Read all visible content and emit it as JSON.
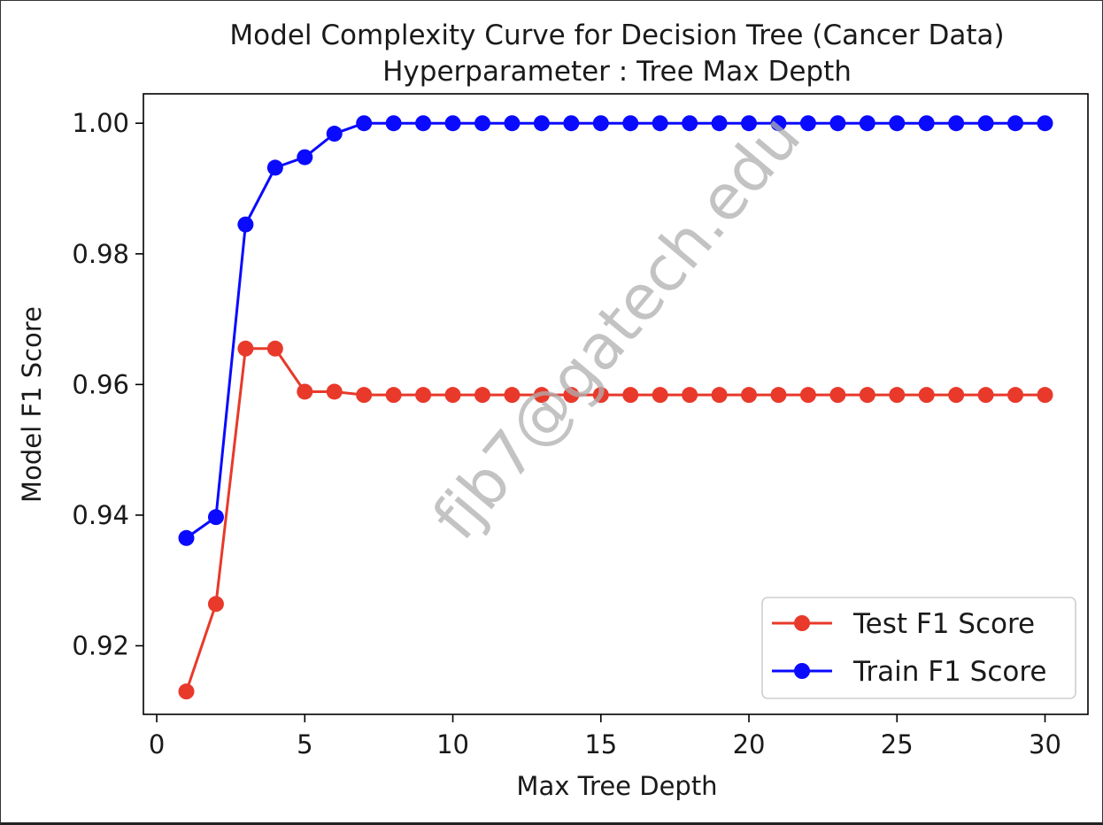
{
  "chart_data": {
    "type": "line",
    "title": "Model Complexity Curve for Decision Tree (Cancer Data)",
    "subtitle": "Hyperparameter : Tree Max Depth",
    "xlabel": "Max Tree Depth",
    "ylabel": "Model F1 Score",
    "xlim": [
      -0.45,
      31.45
    ],
    "ylim": [
      0.9095,
      1.0045
    ],
    "xticks": [
      0,
      5,
      10,
      15,
      20,
      25,
      30
    ],
    "xtick_labels": [
      "0",
      "5",
      "10",
      "15",
      "20",
      "25",
      "30"
    ],
    "yticks": [
      0.92,
      0.94,
      0.96,
      0.98,
      1.0
    ],
    "ytick_labels": [
      "0.92",
      "0.94",
      "0.96",
      "0.98",
      "1.00"
    ],
    "grid": false,
    "legend_position": "bottom-right",
    "x": [
      1,
      2,
      3,
      4,
      5,
      6,
      7,
      8,
      9,
      10,
      11,
      12,
      13,
      14,
      15,
      16,
      17,
      18,
      19,
      20,
      21,
      22,
      23,
      24,
      25,
      26,
      27,
      28,
      29,
      30
    ],
    "series": [
      {
        "name": "Test F1 Score",
        "color": "#e8392a",
        "marker": "circle",
        "values": [
          0.913,
          0.9264,
          0.9655,
          0.9655,
          0.9589,
          0.9589,
          0.9584,
          0.9584,
          0.9584,
          0.9584,
          0.9584,
          0.9584,
          0.9584,
          0.9584,
          0.9584,
          0.9584,
          0.9584,
          0.9584,
          0.9584,
          0.9584,
          0.9584,
          0.9584,
          0.9584,
          0.9584,
          0.9584,
          0.9584,
          0.9584,
          0.9584,
          0.9584,
          0.9584
        ]
      },
      {
        "name": "Train F1 Score",
        "color": "#0a0aff",
        "marker": "circle",
        "values": [
          0.9365,
          0.9397,
          0.9845,
          0.9932,
          0.9948,
          0.9984,
          1.0,
          1.0,
          1.0,
          1.0,
          1.0,
          1.0,
          1.0,
          1.0,
          1.0,
          1.0,
          1.0,
          1.0,
          1.0,
          1.0,
          1.0,
          1.0,
          1.0,
          1.0,
          1.0,
          1.0,
          1.0,
          1.0,
          1.0,
          1.0
        ]
      }
    ]
  },
  "watermark": "fjb7@gatech.edu"
}
